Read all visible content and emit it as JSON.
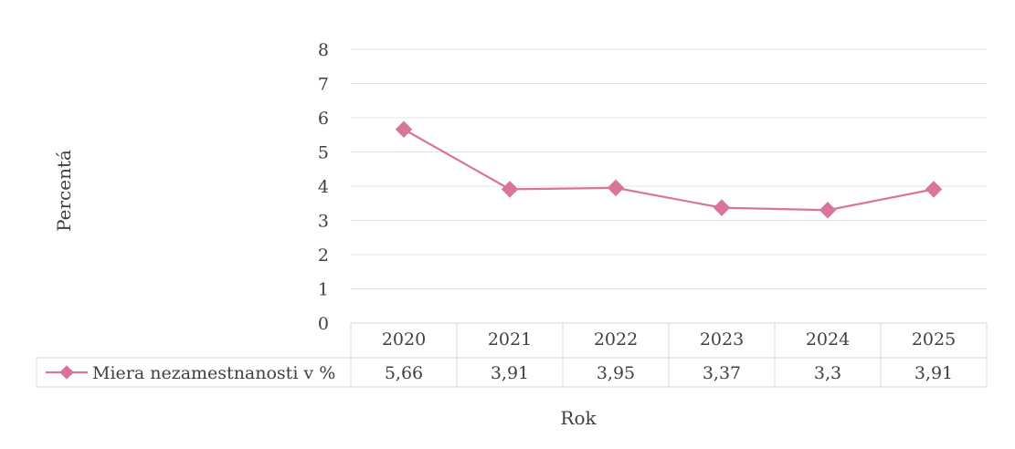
{
  "chart_data": {
    "type": "line",
    "title": "",
    "xlabel": "Rok",
    "ylabel": "Percentá",
    "categories": [
      "2020",
      "2021",
      "2022",
      "2023",
      "2024",
      "2025"
    ],
    "series": [
      {
        "name": "Miera nezamestnanosti v %",
        "values": [
          5.66,
          3.91,
          3.95,
          3.37,
          3.3,
          3.91
        ],
        "value_labels": [
          "5,66",
          "3,91",
          "3,95",
          "3,37",
          "3,3",
          "3,91"
        ],
        "color": "#d9749b"
      }
    ],
    "ylim": [
      0,
      8
    ],
    "y_ticks": [
      "0",
      "1",
      "2",
      "3",
      "4",
      "5",
      "6",
      "7",
      "8"
    ],
    "grid": true,
    "legend": "data-table-below"
  }
}
